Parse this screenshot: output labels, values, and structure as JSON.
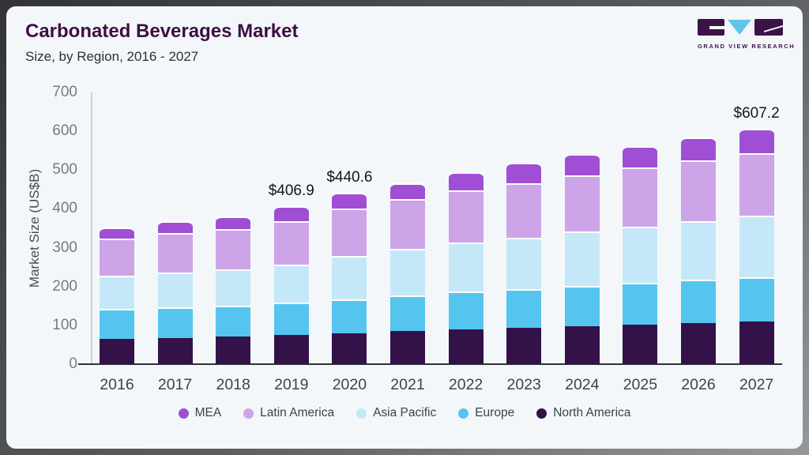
{
  "header": {
    "title": "Carbonated Beverages Market",
    "subtitle": "Size, by Region, 2016 - 2027"
  },
  "logo": {
    "text": "GRAND VIEW RESEARCH",
    "colors": {
      "block": "#3b1349",
      "triangle": "#5fc5e9"
    }
  },
  "colors": {
    "card_background": "#f4f7fa",
    "title_text": "#3c0f44",
    "axis_line": "#2e3238",
    "y_axis_line": "#c9cfd5"
  },
  "chart_data": {
    "type": "bar",
    "stacked": true,
    "title": "Carbonated Beverages Market",
    "subtitle": "Size, by Region, 2016 - 2027",
    "xlabel": "",
    "ylabel": "Market Size (US$B)",
    "ylim": [
      0,
      700
    ],
    "yticks": [
      0,
      100,
      200,
      300,
      400,
      500,
      600,
      700
    ],
    "grid": false,
    "legend_position": "bottom",
    "categories": [
      "2016",
      "2017",
      "2018",
      "2019",
      "2020",
      "2021",
      "2022",
      "2023",
      "2024",
      "2025",
      "2026",
      "2027"
    ],
    "series": [
      {
        "name": "North America",
        "color": "#321249",
        "values": [
          65,
          68,
          72,
          76,
          80,
          85,
          89,
          93,
          97,
          101,
          106,
          110
        ]
      },
      {
        "name": "Europe",
        "color": "#55c5f0",
        "values": [
          77,
          78,
          79,
          82,
          87,
          93,
          98,
          101,
          105,
          108,
          112,
          114
        ]
      },
      {
        "name": "Asia Pacific",
        "color": "#c4e8f8",
        "values": [
          85,
          90,
          93,
          99,
          112,
          120,
          126,
          132,
          139,
          146,
          151,
          159
        ]
      },
      {
        "name": "Latin America",
        "color": "#cda4e8",
        "values": [
          97,
          102,
          105,
          112,
          122,
          127,
          135,
          140,
          146,
          151,
          157,
          160
        ]
      },
      {
        "name": "MEA",
        "color": "#a04fd4",
        "values": [
          28,
          30,
          32,
          38,
          40,
          42,
          46,
          52,
          54,
          56,
          58,
          64
        ]
      }
    ],
    "totals": [
      352,
      368,
      381,
      406.9,
      440.6,
      467,
      494,
      518,
      541,
      562,
      584,
      607.2
    ],
    "annotations": [
      {
        "category": "2019",
        "text": "$406.9"
      },
      {
        "category": "2020",
        "text": "$440.6"
      },
      {
        "category": "2027",
        "text": "$607.2"
      }
    ],
    "legend": [
      "MEA",
      "Latin America",
      "Asia Pacific",
      "Europe",
      "North America"
    ]
  }
}
